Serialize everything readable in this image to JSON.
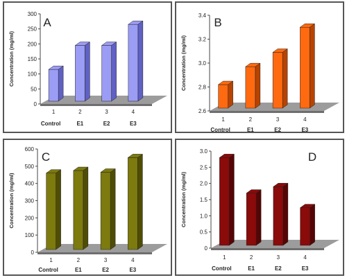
{
  "chart_data": [
    {
      "type": "bar",
      "panel_letter": "A",
      "categories": [
        "1",
        "2",
        "3",
        "4"
      ],
      "category_names": [
        "Control",
        "E1",
        "E2",
        "E3"
      ],
      "values": [
        115,
        195,
        195,
        265
      ],
      "ylabel": "Concentration  (mg/ml)",
      "ylim": [
        0,
        300
      ],
      "yticks": [
        0,
        50,
        100,
        150,
        200,
        250,
        300
      ],
      "yticklabels": [
        "0",
        "50",
        "100",
        "150",
        "200",
        "250",
        "300"
      ],
      "color": "#9b9cf4",
      "color_dark": "#6061c4"
    },
    {
      "type": "bar",
      "panel_letter": "B",
      "categories": [
        "1",
        "2",
        "3",
        "4"
      ],
      "category_names": [
        "Control",
        "E1",
        "E2",
        "E3"
      ],
      "values": [
        2.82,
        2.97,
        3.09,
        3.3
      ],
      "ylabel": "Concentration  (mg/ml)",
      "ylim": [
        2.6,
        3.4
      ],
      "yticks": [
        2.6,
        2.8,
        3.0,
        3.2,
        3.4
      ],
      "yticklabels": [
        "2.6",
        "2.8",
        "3.0",
        "3.2",
        "3.4"
      ],
      "color": "#ff6a10",
      "color_dark": "#b84300"
    },
    {
      "type": "bar",
      "panel_letter": "C",
      "categories": [
        "1",
        "2",
        "3",
        "4"
      ],
      "category_names": [
        "Control",
        "E1",
        "E2",
        "E3"
      ],
      "values": [
        460,
        475,
        465,
        550
      ],
      "ylabel": "Concentration (mg/ml)",
      "ylim": [
        0,
        600
      ],
      "yticks": [
        0,
        100,
        200,
        300,
        400,
        500,
        600
      ],
      "yticklabels": [
        "0",
        "100",
        "200",
        "300",
        "400",
        "500",
        "600"
      ],
      "color": "#7d7a0e",
      "color_dark": "#4f4d05"
    },
    {
      "type": "bar",
      "panel_letter": "D",
      "categories": [
        "1",
        "2",
        "3",
        "4"
      ],
      "category_names": [
        "Control",
        "E1",
        "E2",
        "E3"
      ],
      "values": [
        2.8,
        1.7,
        1.9,
        1.25
      ],
      "ylabel": "Concentration (mg/ml)",
      "ylim": [
        0,
        3.0
      ],
      "yticks": [
        0,
        0.5,
        1.0,
        1.5,
        2.0,
        2.5,
        3.0
      ],
      "yticklabels": [
        "0",
        "0.5",
        "1.0",
        "1.5",
        "2.0",
        "2.5",
        "3.0"
      ],
      "color": "#8b0a0a",
      "color_dark": "#560404"
    }
  ]
}
